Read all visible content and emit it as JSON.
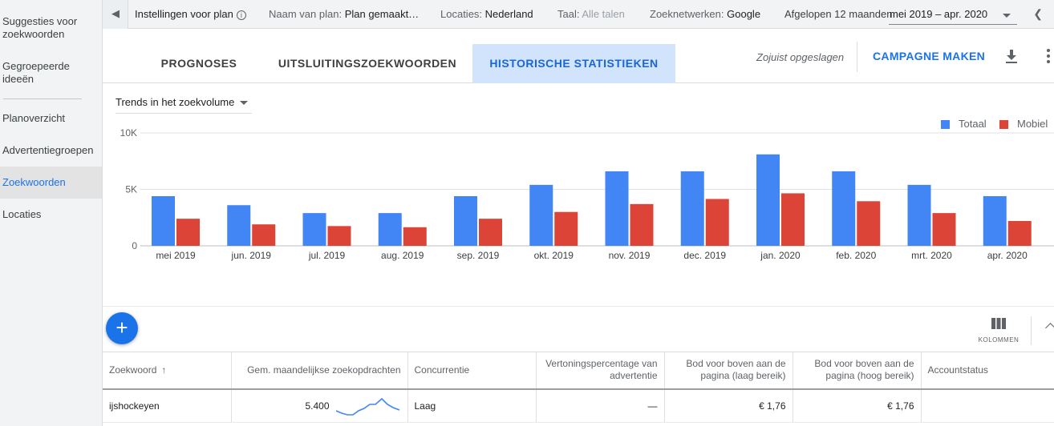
{
  "sidebar": {
    "items": [
      {
        "label": "Suggesties voor zoekwoorden"
      },
      {
        "label": "Gegroepeerde ideeën"
      },
      {
        "label": "Planoverzicht"
      },
      {
        "label": "Advertentiegroepen"
      },
      {
        "label": "Zoekwoorden",
        "active": true
      },
      {
        "label": "Locaties"
      }
    ]
  },
  "topbar": {
    "settings_label": "Instellingen voor plan",
    "plan_name_label": "Naam van plan:",
    "plan_name_value": "Plan gemaakt…",
    "locations_label": "Locaties:",
    "locations_value": "Nederland",
    "language_label": "Taal:",
    "language_value": "Alle talen",
    "networks_label": "Zoeknetwerken:",
    "networks_value": "Google",
    "period_label": "Afgelopen 12 maanden",
    "period_value": "mei 2019 – apr. 2020"
  },
  "tabs": [
    {
      "label": "PROGNOSES"
    },
    {
      "label": "UITSLUITINGSZOEKWOORDEN"
    },
    {
      "label": "HISTORISCHE STATISTIEKEN",
      "active": true
    }
  ],
  "toolbar": {
    "saved_text": "Zojuist opgeslagen",
    "campaign_label": "CAMPAGNE MAKEN"
  },
  "chart_controls": {
    "trend_select": "Trends in het zoekvolume"
  },
  "colors": {
    "total": "#4285f4",
    "mobile": "#db4437",
    "accent": "#1a73e8"
  },
  "chart_data": {
    "type": "bar",
    "categories": [
      "mei 2019",
      "jun. 2019",
      "jul. 2019",
      "aug. 2019",
      "sep. 2019",
      "okt. 2019",
      "nov. 2019",
      "dec. 2019",
      "jan. 2020",
      "feb. 2020",
      "mrt. 2020",
      "apr. 2020"
    ],
    "series": [
      {
        "name": "Totaal",
        "values": [
          4400,
          3600,
          2900,
          2900,
          4400,
          5400,
          6600,
          6600,
          8100,
          6600,
          5400,
          4400
        ]
      },
      {
        "name": "Mobiel",
        "values": [
          2400,
          1900,
          1750,
          1650,
          2400,
          3000,
          3700,
          4150,
          4650,
          3950,
          2900,
          2200
        ]
      }
    ],
    "yticks": [
      "0",
      "5K",
      "10K"
    ],
    "ylim": [
      0,
      10000
    ],
    "legend": "top-right",
    "grid": true
  },
  "actions": {
    "columns_label": "KOLOMMEN"
  },
  "table": {
    "headers": {
      "keyword": "Zoekwoord",
      "searches": "Gem. maandelijkse zoekopdrachten",
      "competition": "Concurrentie",
      "impression_share": "Vertoningspercentage van advertentie",
      "bid_low": "Bod voor boven aan de pagina (laag bereik)",
      "bid_high": "Bod voor boven aan de pagina (hoog bereik)",
      "status": "Accountstatus"
    },
    "rows": [
      {
        "keyword": "ijshockeyen",
        "searches": "5.400",
        "competition": "Laag",
        "impression_share": "—",
        "bid_low": "€ 1,76",
        "bid_high": "€ 1,76",
        "status": ""
      }
    ]
  }
}
